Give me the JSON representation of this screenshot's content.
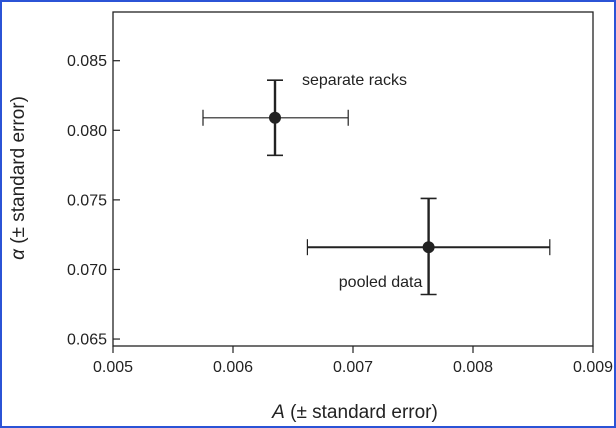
{
  "chart_data": {
    "type": "scatter",
    "title": "",
    "xlabel_italic": "A",
    "xlabel_rest": " (± standard error)",
    "ylabel_italic": "α",
    "ylabel_rest": " (± standard error)",
    "xlim": [
      0.005,
      0.009
    ],
    "ylim": [
      0.0645,
      0.0885
    ],
    "xticks": [
      0.005,
      0.006,
      0.007,
      0.008,
      0.009
    ],
    "xtick_labels": [
      "0.005",
      "0.006",
      "0.007",
      "0.008",
      "0.009"
    ],
    "yticks": [
      0.065,
      0.07,
      0.075,
      0.08,
      0.085
    ],
    "ytick_labels": [
      "0.065",
      "0.070",
      "0.075",
      "0.080",
      "0.085"
    ],
    "grid": false,
    "points": [
      {
        "label": "separate racks",
        "x": 0.00635,
        "y": 0.0809,
        "xerr_low": 0.00575,
        "xerr_high": 0.00696,
        "yerr_low": 0.0782,
        "yerr_high": 0.0836
      },
      {
        "label": "pooled data",
        "x": 0.00763,
        "y": 0.0716,
        "xerr_low": 0.00662,
        "xerr_high": 0.00864,
        "yerr_low": 0.0682,
        "yerr_high": 0.0751
      }
    ],
    "colors": {
      "frame_border": "#2b53d6",
      "marks": "#222222"
    }
  }
}
